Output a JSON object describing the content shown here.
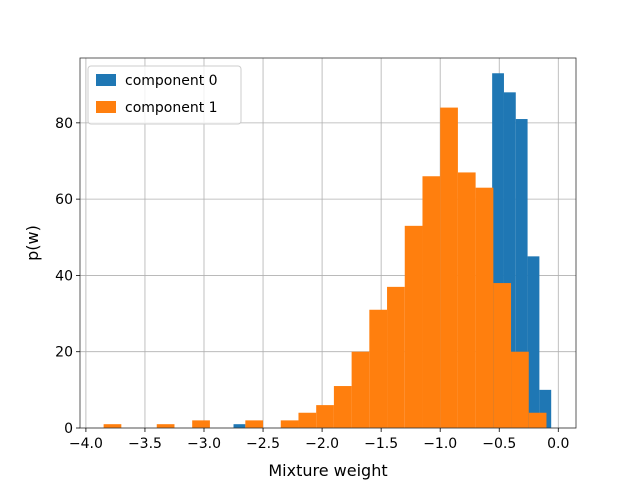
{
  "chart_data": {
    "type": "bar",
    "title": "",
    "xlabel": "Mixture weight",
    "ylabel": "p(w)",
    "xlim": [
      -4.05,
      0.15
    ],
    "ylim": [
      0,
      97
    ],
    "xticks": [
      -4.0,
      -3.5,
      -3.0,
      -2.5,
      -2.0,
      -1.5,
      -1.0,
      -0.5,
      0.0
    ],
    "xtick_labels": [
      "−4.0",
      "−3.5",
      "−3.0",
      "−2.5",
      "−2.0",
      "−1.5",
      "−1.0",
      "−0.5",
      "0.0"
    ],
    "yticks": [
      0,
      20,
      40,
      60,
      80
    ],
    "ytick_labels": [
      "0",
      "20",
      "40",
      "60",
      "80"
    ],
    "grid": true,
    "legend_position": "top-left",
    "series": [
      {
        "name": "component 0",
        "color": "#1f77b4",
        "bins": [
          {
            "x0": -2.75,
            "x1": -2.65,
            "count": 1
          },
          {
            "x0": -0.56,
            "x1": -0.46,
            "count": 93
          },
          {
            "x0": -0.46,
            "x1": -0.36,
            "count": 88
          },
          {
            "x0": -0.36,
            "x1": -0.26,
            "count": 81
          },
          {
            "x0": -0.26,
            "x1": -0.16,
            "count": 45
          },
          {
            "x0": -0.16,
            "x1": -0.06,
            "count": 10
          }
        ]
      },
      {
        "name": "component 1",
        "color": "#ff7f0e",
        "bins": [
          {
            "x0": -3.85,
            "x1": -3.7,
            "count": 1
          },
          {
            "x0": -3.4,
            "x1": -3.25,
            "count": 1
          },
          {
            "x0": -3.1,
            "x1": -2.95,
            "count": 2
          },
          {
            "x0": -2.65,
            "x1": -2.5,
            "count": 2
          },
          {
            "x0": -2.35,
            "x1": -2.2,
            "count": 2
          },
          {
            "x0": -2.2,
            "x1": -2.05,
            "count": 4
          },
          {
            "x0": -2.05,
            "x1": -1.9,
            "count": 6
          },
          {
            "x0": -1.9,
            "x1": -1.75,
            "count": 11
          },
          {
            "x0": -1.75,
            "x1": -1.6,
            "count": 20
          },
          {
            "x0": -1.6,
            "x1": -1.45,
            "count": 31
          },
          {
            "x0": -1.45,
            "x1": -1.3,
            "count": 37
          },
          {
            "x0": -1.3,
            "x1": -1.15,
            "count": 53
          },
          {
            "x0": -1.15,
            "x1": -1.0,
            "count": 66
          },
          {
            "x0": -1.0,
            "x1": -0.85,
            "count": 84
          },
          {
            "x0": -0.85,
            "x1": -0.7,
            "count": 67
          },
          {
            "x0": -0.7,
            "x1": -0.55,
            "count": 63
          },
          {
            "x0": -0.55,
            "x1": -0.4,
            "count": 38
          },
          {
            "x0": -0.4,
            "x1": -0.25,
            "count": 20
          },
          {
            "x0": -0.25,
            "x1": -0.1,
            "count": 4
          }
        ]
      }
    ]
  }
}
